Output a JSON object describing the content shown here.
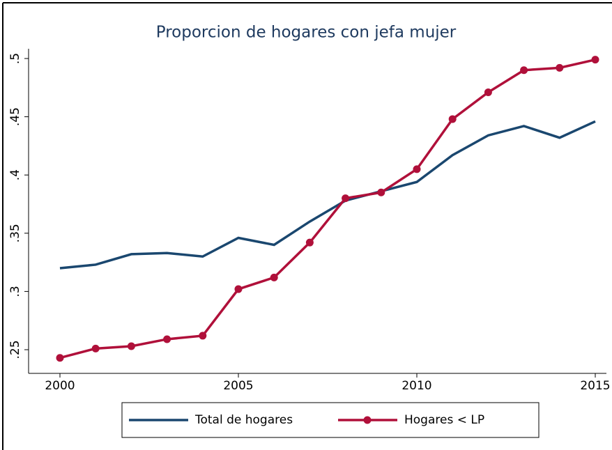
{
  "chart_data": {
    "type": "line",
    "title": "Proporcion de hogares con jefa mujer",
    "x": [
      2000,
      2001,
      2002,
      2003,
      2004,
      2005,
      2006,
      2007,
      2008,
      2009,
      2010,
      2011,
      2012,
      2013,
      2014,
      2015
    ],
    "series": [
      {
        "name": "Total de hogares",
        "color": "#1a476f",
        "markers": false,
        "values": [
          0.32,
          0.323,
          0.332,
          0.333,
          0.33,
          0.346,
          0.34,
          0.36,
          0.378,
          0.386,
          0.394,
          0.417,
          0.434,
          0.442,
          0.432,
          0.446
        ]
      },
      {
        "name": "Hogares < LP",
        "color": "#b0103a",
        "markers": true,
        "values": [
          0.243,
          0.251,
          0.253,
          0.259,
          0.262,
          0.302,
          0.312,
          0.342,
          0.38,
          0.385,
          0.405,
          0.448,
          0.471,
          0.49,
          0.492,
          0.499
        ]
      }
    ],
    "xlim": [
      2000,
      2015
    ],
    "xticks": [
      2000,
      2005,
      2010,
      2015
    ],
    "ylim": [
      0.25,
      0.5
    ],
    "yticks": [
      {
        "value": 0.25,
        "label": ".25"
      },
      {
        "value": 0.3,
        "label": ".3"
      },
      {
        "value": 0.35,
        "label": ".35"
      },
      {
        "value": 0.4,
        "label": ".4"
      },
      {
        "value": 0.45,
        "label": ".45"
      },
      {
        "value": 0.5,
        "label": ".5"
      }
    ],
    "legend": "bottom"
  }
}
